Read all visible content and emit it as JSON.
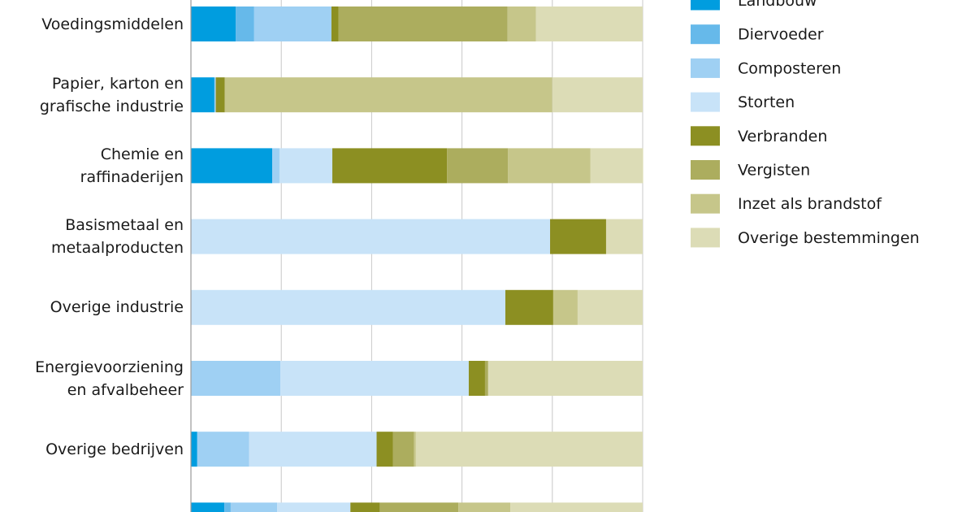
{
  "chart_data": {
    "type": "bar",
    "orientation": "horizontal",
    "stacked": true,
    "categories": [
      "Voedingsmiddelen",
      "Papier, karton en\ngrafische industrie",
      "Chemie en\nraffinaderijen",
      "Basismetaal en\nmetaalproducten",
      "Overige industrie",
      "Energievoorziening\nen afvalbeheer",
      "Overige bedrijven",
      null
    ],
    "series": [
      {
        "name": "Landbouw",
        "color": "#009ddf",
        "values": [
          9.9,
          5.2,
          18,
          0,
          0,
          0,
          1.4,
          7.4
        ]
      },
      {
        "name": "Diervoeder",
        "color": "#66b9ea",
        "values": [
          4.1,
          0,
          0,
          0,
          0,
          0,
          0,
          1.4
        ]
      },
      {
        "name": "Composteren",
        "color": "#9fd0f3",
        "values": [
          17.1,
          0.3,
          1.6,
          0,
          0,
          19.8,
          11.5,
          10.3
        ]
      },
      {
        "name": "Storten",
        "color": "#c8e3f8",
        "values": [
          0,
          0,
          11.7,
          79.5,
          69.6,
          41.7,
          28.2,
          16.2
        ]
      },
      {
        "name": "Verbranden",
        "color": "#8c8f22",
        "values": [
          1.6,
          2,
          25.4,
          12.4,
          10.6,
          3.6,
          3.6,
          6.5
        ]
      },
      {
        "name": "Vergisten",
        "color": "#acad5e",
        "values": [
          37.4,
          0,
          13.5,
          0,
          0,
          0.7,
          4.7,
          17.4
        ]
      },
      {
        "name": "Inzet als brandstof",
        "color": "#c6c68a",
        "values": [
          6.3,
          72.5,
          18.2,
          0,
          5.4,
          0,
          0.4,
          11.5
        ]
      },
      {
        "name": "Overige bestemmingen",
        "color": "#dcdcb6",
        "values": [
          23.6,
          20,
          11.7,
          8.1,
          14.4,
          34.2,
          50.2,
          29.3
        ]
      }
    ],
    "xlim": [
      0,
      100
    ],
    "xticks": [
      0,
      20,
      40,
      60,
      80,
      100
    ],
    "grid": true,
    "legend": "right"
  }
}
